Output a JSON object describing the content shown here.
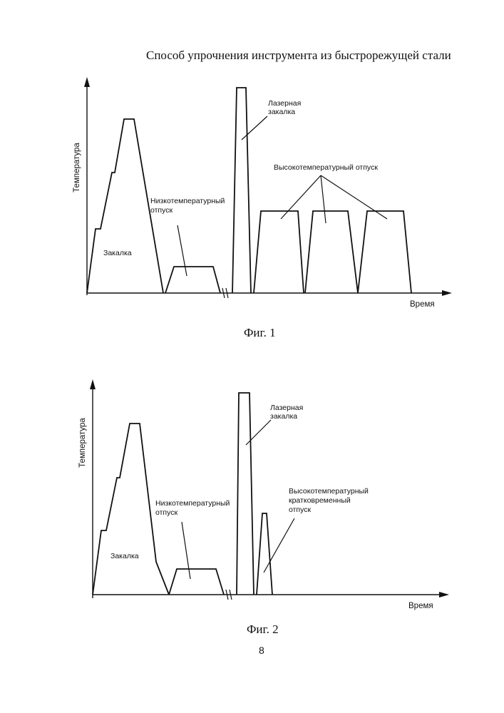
{
  "document": {
    "title": "Способ упрочнения инструмента из быстрорежущей стали",
    "page_number": "8"
  },
  "figures": [
    {
      "caption": "Фиг. 1",
      "y_axis_label": "Температура",
      "x_axis_label": "Время",
      "labels": {
        "quench": "Закалка",
        "low_temper_line1": "Низкотемпературный",
        "low_temper_line2": "отпуск",
        "laser_line1": "Лазерная",
        "laser_line2": "закалка",
        "high_temper": "Высокотемпературный отпуск"
      }
    },
    {
      "caption": "Фиг. 2",
      "y_axis_label": "Температура",
      "x_axis_label": "Время",
      "labels": {
        "quench": "Закалка",
        "low_temper_line1": "Низкотемпературный",
        "low_temper_line2": "отпуск",
        "laser_line1": "Лазерная",
        "laser_line2": "закалка",
        "high_temper_line1": "Высокотемпературный",
        "high_temper_line2": "кратковременный",
        "high_temper_line3": "отпуск"
      }
    }
  ]
}
